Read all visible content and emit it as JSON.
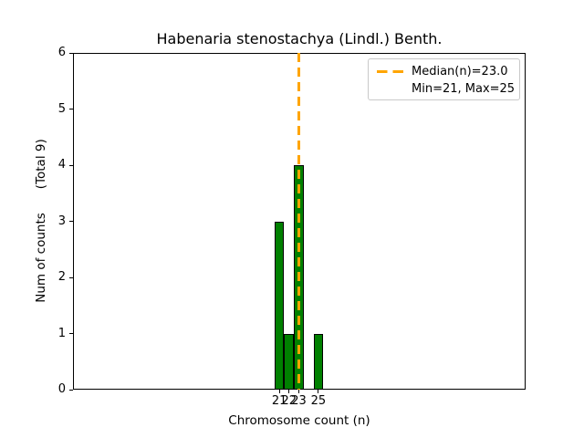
{
  "figure": {
    "title": "Habenaria stenostachya (Lindl.) Benth.",
    "xlabel": "Chromosome count (n)",
    "ylabel_primary": "Num of counts",
    "ylabel_secondary": "(Total 9)"
  },
  "legend": {
    "median_label": "Median(n)=23.0",
    "minmax_label": "Min=21, Max=25"
  },
  "chart_data": {
    "type": "bar",
    "title": "Habenaria stenostachya (Lindl.) Benth.",
    "xlabel": "Chromosome count (n)",
    "ylabel": "Num of counts (Total 9)",
    "categories": [
      21,
      22,
      23,
      25
    ],
    "values": [
      3,
      1,
      4,
      1
    ],
    "total_counts": 9,
    "median_n": 23.0,
    "min_n": 21,
    "max_n": 25,
    "ylim": [
      0,
      6
    ],
    "yticks": [
      0,
      1,
      2,
      3,
      4,
      5,
      6
    ],
    "xticks": [
      21,
      22,
      23,
      25
    ],
    "bar_color": "#008000",
    "bar_edge_color": "#000000",
    "median_line_color": "#ffa500",
    "median_line_style": "dashed",
    "legend_position": "upper right",
    "grid": false,
    "background": "#ffffff"
  }
}
